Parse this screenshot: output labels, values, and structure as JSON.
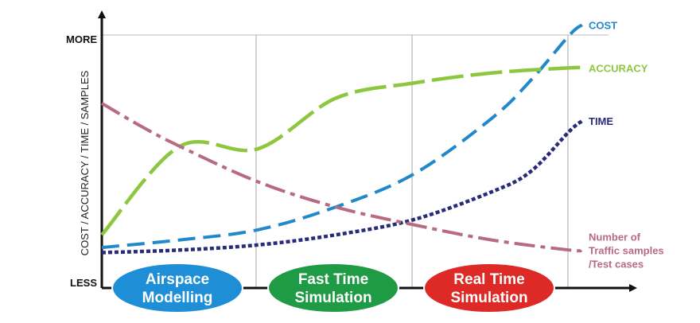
{
  "chart_data": {
    "type": "line",
    "ylabel": "COST / ACCURACY / TIME / SAMPLES",
    "y_top_label": "MORE",
    "y_bottom_label": "LESS",
    "ylim": [
      0,
      1
    ],
    "grid": "vertical lines at phase boundaries",
    "legend": "right, inline labels at line ends",
    "phases": [
      {
        "name": "airspace-modelling",
        "lines": [
          "Airspace",
          "Modelling"
        ],
        "color": "#1e8fd6"
      },
      {
        "name": "fast-time-simulation",
        "lines": [
          "Fast Time",
          "Simulation"
        ],
        "color": "#1f9a45"
      },
      {
        "name": "real-time-simulation",
        "lines": [
          "Real Time",
          "Simulation"
        ],
        "color": "#dd2a26"
      }
    ],
    "series": [
      {
        "name": "COST",
        "color": "#2288cc",
        "style": "dashed",
        "x": [
          0,
          0.5,
          1.0,
          1.5,
          2.0,
          2.5,
          2.75,
          3.0,
          3.08
        ],
        "y": [
          0.16,
          0.19,
          0.23,
          0.32,
          0.45,
          0.67,
          0.82,
          1.0,
          1.04
        ],
        "label_lines": [
          "COST"
        ]
      },
      {
        "name": "ACCURACY",
        "color": "#8dc63f",
        "style": "long-dash",
        "x": [
          0,
          0.5,
          1.0,
          1.5,
          2.0,
          2.5,
          3.0,
          3.08
        ],
        "y": [
          0.21,
          0.56,
          0.55,
          0.75,
          0.81,
          0.85,
          0.87,
          0.87
        ],
        "label_lines": [
          "ACCURACY"
        ]
      },
      {
        "name": "TIME",
        "color": "#2a2a7a",
        "style": "dotted",
        "x": [
          0,
          0.5,
          1.0,
          1.5,
          2.0,
          2.5,
          2.75,
          3.0,
          3.08
        ],
        "y": [
          0.14,
          0.15,
          0.17,
          0.21,
          0.27,
          0.38,
          0.46,
          0.62,
          0.66
        ],
        "label_lines": [
          "TIME"
        ]
      },
      {
        "name": "Number of Traffic samples /Test cases",
        "color": "#b86a80",
        "style": "dash-dot",
        "x": [
          0,
          0.25,
          0.5,
          1.0,
          1.5,
          2.0,
          2.5,
          3.0,
          3.08
        ],
        "y": [
          0.73,
          0.64,
          0.56,
          0.42,
          0.32,
          0.25,
          0.19,
          0.15,
          0.15
        ],
        "label_lines": [
          "Number of",
          "Traffic samples",
          "/Test cases"
        ]
      }
    ]
  }
}
